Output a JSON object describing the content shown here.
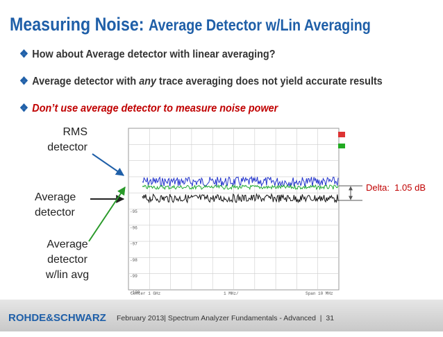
{
  "title": {
    "main": "Measuring Noise:",
    "sub": "Average Detector w/Lin Averaging"
  },
  "bullets": [
    {
      "parts": [
        "How about Average detector with linear averaging?"
      ]
    },
    {
      "parts": [
        "Average detector with ",
        "any",
        " trace averaging does not yield accurate results"
      ]
    },
    {
      "parts": [
        "Don’t use average detector to measure noise power"
      ]
    }
  ],
  "labels": {
    "rms": [
      "RMS",
      "detector"
    ],
    "average": [
      "Average",
      "detector"
    ],
    "average_lin": [
      "Average",
      "detector",
      "w/lin avg"
    ]
  },
  "delta": "Delta:  1.05 dB",
  "screen": {
    "y_labels": [
      "-95",
      "-96",
      "-97",
      "-98",
      "-99",
      "-100"
    ],
    "x_labels": [
      "Center  1 GHz",
      "1 MHz/",
      "Span  10 MHz"
    ]
  },
  "footer": {
    "logo": "ROHDE&SCHWARZ",
    "text": "February 2013| Spectrum Analyzer Fundamentals - Advanced  |  31"
  }
}
